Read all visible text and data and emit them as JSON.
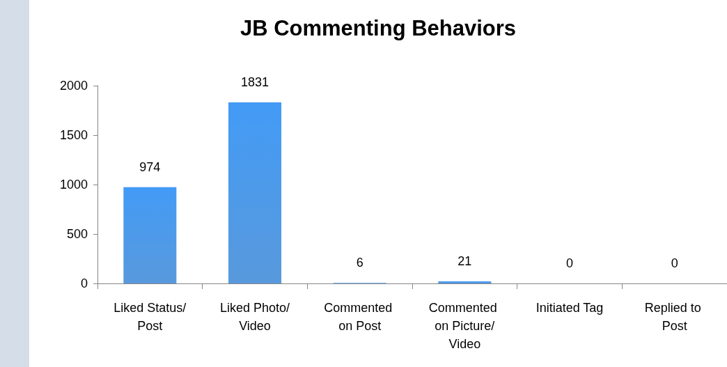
{
  "chart_data": {
    "type": "bar",
    "title": "JB Commenting Behaviors",
    "categories": [
      "Liked Status/Post",
      "Liked Photo/Video",
      "Commented on Post",
      "Commented on Picture/Video",
      "Initiated Tag",
      "Replied to Post"
    ],
    "values": [
      974,
      1831,
      6,
      21,
      0,
      0
    ],
    "color": "#3b87d6",
    "ylim": [
      0,
      2000
    ],
    "yticks": [
      0,
      500,
      1000,
      1500,
      2000
    ],
    "grid": false,
    "data_labels": true
  }
}
